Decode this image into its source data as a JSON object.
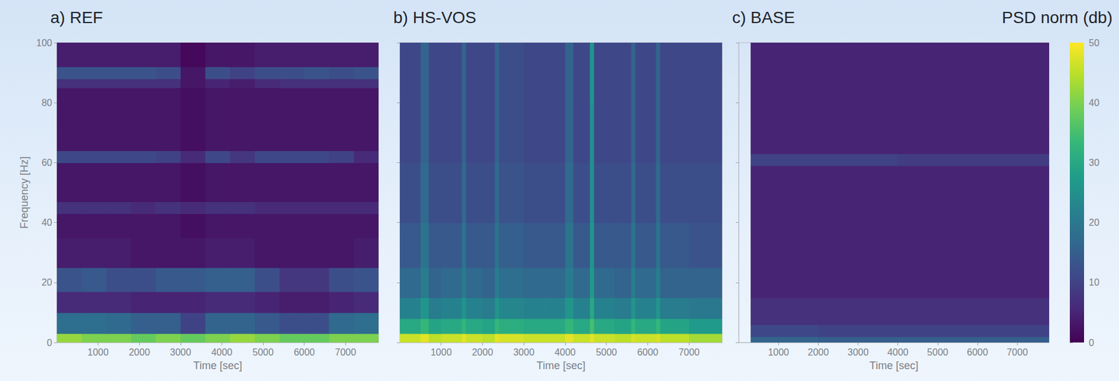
{
  "chart_data": [
    {
      "type": "heatmap",
      "title": "a) REF",
      "xlabel": "Time [sec]",
      "ylabel": "Frequency [Hz]",
      "xlim": [
        0,
        7800
      ],
      "xticks": [
        1000,
        2000,
        3000,
        4000,
        5000,
        6000,
        7000
      ],
      "ylim": [
        0,
        100
      ],
      "yticks": [
        0,
        20,
        40,
        60,
        80,
        100
      ],
      "time_edges": [
        0,
        600,
        1200,
        1800,
        2400,
        3000,
        3600,
        4200,
        4800,
        5400,
        6000,
        6600,
        7200,
        7800
      ],
      "freq_edges": [
        0,
        3,
        10,
        17,
        25,
        35,
        43,
        47,
        60,
        64,
        85,
        88,
        92,
        100
      ],
      "cells": [
        [
          42,
          40,
          40,
          38,
          40,
          38,
          40,
          42,
          40,
          38,
          38,
          40,
          40
        ],
        [
          18,
          18,
          17,
          15,
          15,
          10,
          16,
          16,
          14,
          12,
          12,
          17,
          18
        ],
        [
          6,
          6,
          6,
          5,
          5,
          5,
          6,
          6,
          5,
          4,
          4,
          5,
          6
        ],
        [
          13,
          14,
          12,
          12,
          14,
          14,
          15,
          15,
          12,
          8,
          8,
          12,
          13
        ],
        [
          4,
          4,
          4,
          3,
          3,
          3,
          4,
          4,
          3,
          3,
          3,
          3,
          4
        ],
        [
          3,
          3,
          3,
          3,
          3,
          2,
          3,
          3,
          3,
          3,
          3,
          3,
          3
        ],
        [
          7,
          7,
          7,
          6,
          7,
          6,
          7,
          7,
          6,
          6,
          6,
          6,
          6
        ],
        [
          3,
          3,
          3,
          3,
          3,
          2,
          3,
          3,
          3,
          3,
          3,
          3,
          3
        ],
        [
          11,
          11,
          11,
          11,
          10,
          6,
          11,
          8,
          11,
          11,
          11,
          10,
          6
        ],
        [
          3,
          3,
          3,
          3,
          3,
          2,
          3,
          3,
          3,
          3,
          3,
          3,
          3
        ],
        [
          7,
          7,
          7,
          7,
          7,
          3,
          5,
          4,
          6,
          7,
          7,
          7,
          7
        ],
        [
          13,
          13,
          13,
          13,
          12,
          3,
          12,
          10,
          12,
          12,
          13,
          12,
          13
        ],
        [
          4,
          4,
          4,
          4,
          4,
          1,
          3,
          3,
          4,
          4,
          4,
          4,
          4
        ]
      ]
    },
    {
      "type": "heatmap",
      "title": "b) HS-VOS",
      "xlabel": "Time [sec]",
      "tick_labels": "x",
      "xlim": [
        0,
        7800
      ],
      "xticks": [
        1000,
        2000,
        3000,
        4000,
        5000,
        6000,
        7000
      ],
      "ylim": [
        0,
        100
      ],
      "yticks": [
        0,
        20,
        40,
        60,
        80,
        100
      ],
      "time_edges": [
        0,
        500,
        700,
        1000,
        1500,
        1600,
        2000,
        2300,
        2400,
        3000,
        3500,
        4000,
        4200,
        4600,
        4700,
        5200,
        5600,
        5700,
        6200,
        6300,
        7000,
        7800
      ],
      "freq_edges": [
        0,
        3,
        8,
        15,
        25,
        40,
        60,
        80,
        100
      ],
      "cells": [
        [
          46,
          48,
          45,
          46,
          48,
          46,
          45,
          48,
          47,
          46,
          46,
          48,
          46,
          48,
          46,
          45,
          47,
          46,
          47,
          45,
          43
        ],
        [
          30,
          33,
          29,
          30,
          33,
          30,
          29,
          33,
          31,
          30,
          30,
          33,
          30,
          35,
          30,
          29,
          33,
          30,
          33,
          29,
          27
        ],
        [
          22,
          26,
          21,
          22,
          26,
          22,
          21,
          26,
          23,
          22,
          22,
          26,
          22,
          30,
          22,
          21,
          26,
          22,
          26,
          21,
          20
        ],
        [
          17,
          21,
          16,
          17,
          21,
          17,
          16,
          21,
          18,
          17,
          17,
          21,
          17,
          27,
          17,
          16,
          21,
          17,
          21,
          16,
          16
        ],
        [
          14,
          19,
          14,
          14,
          19,
          14,
          14,
          19,
          15,
          14,
          14,
          19,
          14,
          26,
          14,
          14,
          19,
          14,
          19,
          14,
          13
        ],
        [
          12,
          17,
          12,
          12,
          17,
          12,
          12,
          17,
          13,
          12,
          12,
          17,
          12,
          25,
          12,
          12,
          17,
          12,
          17,
          12,
          12
        ],
        [
          11,
          16,
          11,
          11,
          16,
          11,
          11,
          16,
          12,
          11,
          11,
          16,
          11,
          25,
          11,
          11,
          16,
          11,
          16,
          11,
          11
        ],
        [
          11,
          16,
          11,
          11,
          16,
          11,
          11,
          16,
          12,
          11,
          11,
          16,
          11,
          26,
          11,
          11,
          16,
          11,
          16,
          11,
          11
        ]
      ]
    },
    {
      "type": "heatmap",
      "title": "c) BASE",
      "xlabel": "Time [sec]",
      "tick_labels": "x",
      "xlim": [
        0,
        7800
      ],
      "xticks": [
        1000,
        2000,
        3000,
        4000,
        5000,
        6000,
        7000
      ],
      "ylim": [
        0,
        100
      ],
      "yticks": [
        0,
        20,
        40,
        60,
        80,
        100
      ],
      "time_edges": [
        300,
        2000,
        4000,
        6000,
        7800
      ],
      "freq_edges": [
        0,
        2,
        6,
        15,
        40,
        59,
        63,
        100
      ],
      "cells": [
        [
          16,
          15,
          15,
          15
        ],
        [
          11,
          10,
          10,
          10
        ],
        [
          7,
          7,
          7,
          7
        ],
        [
          5,
          5,
          5,
          5
        ],
        [
          5,
          5,
          5,
          5
        ],
        [
          10,
          10,
          9,
          9
        ],
        [
          5,
          5,
          5,
          5
        ]
      ],
      "colorbar_title": "PSD norm (db)",
      "colorbar_range": [
        0,
        50
      ],
      "colorbar_ticks": [
        0,
        10,
        20,
        30,
        40,
        50
      ]
    }
  ]
}
